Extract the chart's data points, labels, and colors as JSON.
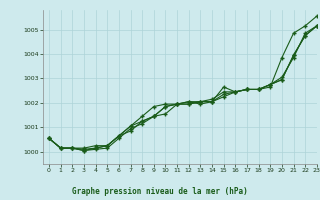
{
  "title": "Graphe pression niveau de la mer (hPa)",
  "background_color": "#ceeaed",
  "grid_color": "#aed4d8",
  "line_color": "#1a5c1a",
  "xlim": [
    -0.5,
    23
  ],
  "ylim": [
    999.5,
    1005.8
  ],
  "yticks": [
    1000,
    1001,
    1002,
    1003,
    1004,
    1005
  ],
  "xticks": [
    0,
    1,
    2,
    3,
    4,
    5,
    6,
    7,
    8,
    9,
    10,
    11,
    12,
    13,
    14,
    15,
    16,
    17,
    18,
    19,
    20,
    21,
    22,
    23
  ],
  "series": [
    [
      1000.55,
      1000.15,
      1000.15,
      1000.1,
      1000.15,
      1000.25,
      1000.65,
      1001.05,
      1001.25,
      1001.45,
      1001.55,
      1001.95,
      1001.95,
      1002.05,
      1002.05,
      1002.65,
      1002.45,
      1002.55,
      1002.55,
      1002.65,
      1003.85,
      1004.85,
      1005.15,
      1005.55
    ],
    [
      1000.55,
      1000.15,
      1000.15,
      1000.05,
      1000.1,
      1000.15,
      1000.55,
      1000.95,
      1001.15,
      1001.45,
      1001.85,
      1001.95,
      1002.05,
      1001.95,
      1002.05,
      1002.25,
      1002.45,
      1002.55,
      1002.55,
      1002.75,
      1002.95,
      1003.95,
      1004.75,
      1005.15
    ],
    [
      1000.55,
      1000.15,
      1000.15,
      1000.15,
      1000.25,
      1000.25,
      1000.65,
      1001.05,
      1001.45,
      1001.85,
      1001.95,
      1001.95,
      1002.05,
      1002.05,
      1002.15,
      1002.45,
      1002.45,
      1002.55,
      1002.55,
      1002.75,
      1002.95,
      1003.95,
      1004.75,
      1005.15
    ],
    [
      1000.55,
      1000.15,
      1000.15,
      1000.05,
      1000.15,
      1000.25,
      1000.65,
      1000.85,
      1001.25,
      1001.45,
      1001.85,
      1001.95,
      1001.95,
      1002.05,
      1002.05,
      1002.35,
      1002.45,
      1002.55,
      1002.55,
      1002.75,
      1003.05,
      1003.85,
      1004.85,
      1005.15
    ]
  ]
}
